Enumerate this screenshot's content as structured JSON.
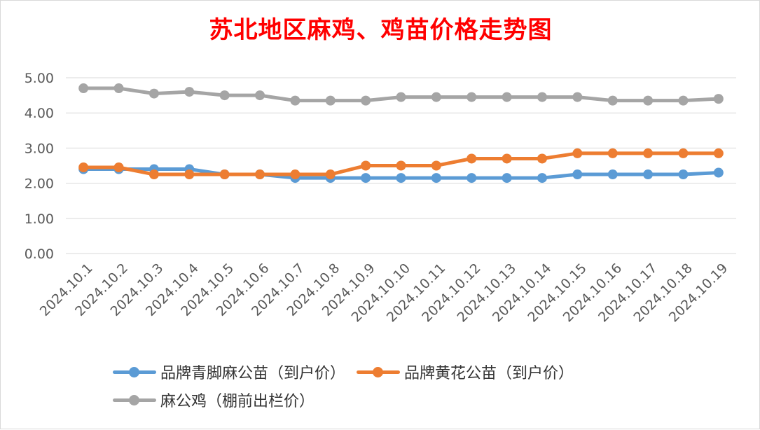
{
  "chart_data": {
    "type": "line",
    "title": "苏北地区麻鸡、鸡苗价格走势图",
    "xlabel": "",
    "ylabel": "",
    "ylim": [
      0,
      5
    ],
    "yticks": [
      "0.00",
      "1.00",
      "2.00",
      "3.00",
      "4.00",
      "5.00"
    ],
    "grid": true,
    "legend_position": "bottom",
    "categories": [
      "2024.10.1",
      "2024.10.2",
      "2024.10.3",
      "2024.10.4",
      "2024.10.5",
      "2024.10.6",
      "2024.10.7",
      "2024.10.8",
      "2024.10.9",
      "2024.10.10",
      "2024.10.11",
      "2024.10.12",
      "2024.10.13",
      "2024.10.14",
      "2024.10.15",
      "2024.10.16",
      "2024.10.17",
      "2024.10.18",
      "2024.10.19"
    ],
    "series": [
      {
        "name": "品牌青脚麻公苗（到户价）",
        "color": "#5b9bd5",
        "values": [
          2.4,
          2.4,
          2.4,
          2.4,
          2.25,
          2.25,
          2.15,
          2.15,
          2.15,
          2.15,
          2.15,
          2.15,
          2.15,
          2.15,
          2.25,
          2.25,
          2.25,
          2.25,
          2.3
        ]
      },
      {
        "name": "品牌黄花公苗（到户价）",
        "color": "#ed7d31",
        "values": [
          2.45,
          2.45,
          2.25,
          2.25,
          2.25,
          2.25,
          2.25,
          2.25,
          2.5,
          2.5,
          2.5,
          2.7,
          2.7,
          2.7,
          2.85,
          2.85,
          2.85,
          2.85,
          2.85
        ]
      },
      {
        "name": "麻公鸡（棚前出栏价）",
        "color": "#a5a5a5",
        "values": [
          4.7,
          4.7,
          4.55,
          4.6,
          4.5,
          4.5,
          4.35,
          4.35,
          4.35,
          4.45,
          4.45,
          4.45,
          4.45,
          4.45,
          4.45,
          4.35,
          4.35,
          4.35,
          4.4
        ]
      }
    ]
  }
}
